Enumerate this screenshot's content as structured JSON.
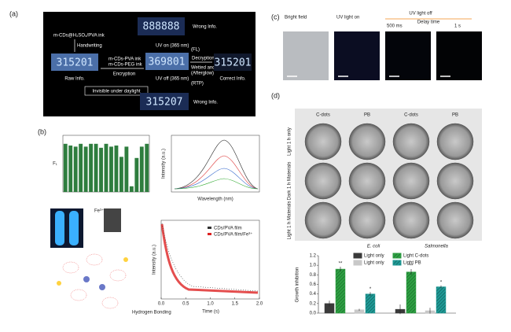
{
  "panel_a": {
    "label": "(a)",
    "ink": "m-CDs@H₂SO₄/PVA ink",
    "handwriting": "Handwriting",
    "raw_display": "315201",
    "raw": "Raw Info.",
    "ink1": "m-CDs-PVA ink",
    "ink2": "m-CDs-PEG ink",
    "encryption": "Encryption",
    "invisible": "Invisible under daylight",
    "uv_on": "UV on (365 nm)",
    "fl": "(FL)",
    "uv_off": "UV off (365 nm)",
    "rtp": "(RTP)",
    "top_display": "888888",
    "wrong_top": "Wrong Info.",
    "mid_display": "369801",
    "decryption": "Decryption",
    "wetted": "Wetted and UV off",
    "afterglow": "(Afterglow)",
    "correct_display": "315201",
    "correct": "Correct Info.",
    "bottom_display": "315207",
    "wrong_bottom": "Wrong Info."
  },
  "panel_b": {
    "label": "(b)",
    "spectrum_y": "Intensity (a.u.)",
    "spectrum_x": "Wavelength (nm)",
    "fe": "Fe³⁺",
    "hbond": "Hydrogen Bonding",
    "decay_y": "Intensity (a.u.)",
    "decay_x": "Time (s)",
    "legend": [
      "CDs/PVA film",
      "CDs/PVA film/Fe³⁺"
    ],
    "decay_xticks": [
      {
        "value": 0,
        "label": "0.0"
      },
      0.5,
      {
        "value": 1,
        "label": "1.0"
      },
      1.5,
      {
        "value": 2,
        "label": "2.0"
      }
    ],
    "decay_xlim": [
      0,
      2
    ]
  },
  "panel_c": {
    "label": "(c)",
    "titles": [
      "Bright field",
      "UV light on",
      "UV light off"
    ],
    "delay": "Delay time",
    "t1": "500 ms",
    "t2": "1 s"
  },
  "panel_d": {
    "label": "(d)",
    "columns": [
      "C-dots",
      "PB",
      "C-dots",
      "PB"
    ],
    "rows": [
      "Light 1 h only",
      "Dark 1 h Materials",
      "Light 1 h Materials"
    ],
    "significance": [
      [
        "**",
        "**"
      ],
      [
        "*",
        "*"
      ]
    ]
  },
  "chart_data": [
    {
      "type": "bar",
      "y_label": "Growth inhibition",
      "categories": [
        "E. coli",
        "Salmonella"
      ],
      "ylim": [
        0,
        1.2
      ],
      "yticks": [
        {
          "value": 0,
          "label": "0.0"
        },
        0.2,
        0.4,
        0.6,
        0.8,
        {
          "value": 1,
          "label": "1.0"
        },
        1.2
      ],
      "series": [
        {
          "name": "Light only",
          "color": "#3a3a3a",
          "values": [
            0.2,
            0.08
          ],
          "errors": [
            0.06,
            0.1
          ]
        },
        {
          "name": "Light C-dots",
          "color": "#2ea043",
          "values": [
            0.92,
            0.86
          ],
          "errors": [
            0.05,
            0.06
          ]
        },
        {
          "name": "Light only",
          "color": "#c8c8c8",
          "values": [
            0.07,
            0.05
          ],
          "errors": [
            0.02,
            0.06
          ]
        },
        {
          "name": "Light PB",
          "color": "#1f9a96",
          "values": [
            0.4,
            0.55
          ],
          "errors": [
            0.04,
            0.03
          ]
        }
      ]
    },
    {
      "type": "bar",
      "y_label": "F₁",
      "color": "#2e7d3e",
      "ylim": [
        0,
        1
      ],
      "values": [
        0.85,
        0.82,
        0.8,
        0.85,
        0.8,
        0.85,
        0.85,
        0.78,
        0.85,
        0.8,
        0.82,
        0.62,
        0.8,
        0.1,
        0.6,
        0.8,
        0.85
      ]
    }
  ]
}
